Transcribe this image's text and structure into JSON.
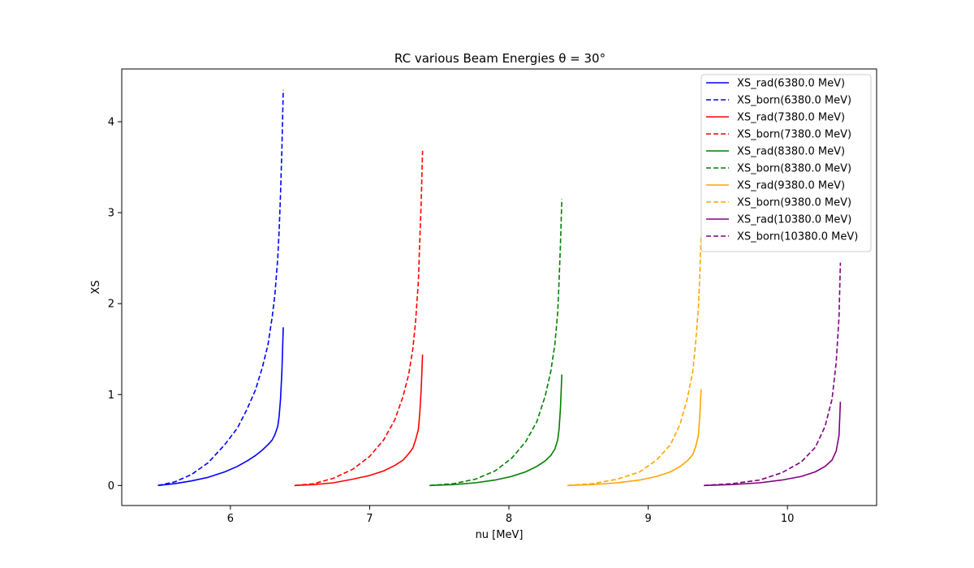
{
  "chart_data": {
    "type": "line",
    "title": "RC various Beam Energies θ = 30°",
    "xlabel": "nu [MeV]",
    "ylabel": "XS",
    "xlim": [
      5.22,
      10.64
    ],
    "ylim": [
      -0.22,
      4.58
    ],
    "xticks": [
      6,
      7,
      8,
      9,
      10
    ],
    "xtick_labels": [
      "6",
      "7",
      "8",
      "9",
      "10"
    ],
    "yticks": [
      0,
      1,
      2,
      3,
      4
    ],
    "ytick_labels": [
      "0",
      "1",
      "2",
      "3",
      "4"
    ],
    "grid": false,
    "legend_position": "top-right",
    "series": [
      {
        "name": "XS_rad(6380.0 MeV)",
        "color": "#0000ff",
        "dash": false,
        "x": [
          5.48,
          5.6,
          5.72,
          5.84,
          5.96,
          6.05,
          6.12,
          6.18,
          6.23,
          6.27,
          6.3,
          6.32,
          6.34,
          6.35,
          6.36,
          6.37,
          6.38
        ],
        "y": [
          0.0,
          0.02,
          0.05,
          0.09,
          0.15,
          0.21,
          0.27,
          0.33,
          0.39,
          0.45,
          0.5,
          0.56,
          0.65,
          0.76,
          0.95,
          1.25,
          1.74
        ]
      },
      {
        "name": "XS_born(6380.0 MeV)",
        "color": "#0000ff",
        "dash": true,
        "x": [
          5.48,
          5.6,
          5.72,
          5.84,
          5.96,
          6.05,
          6.12,
          6.18,
          6.23,
          6.27,
          6.3,
          6.32,
          6.34,
          6.35,
          6.36,
          6.37,
          6.38
        ],
        "y": [
          0.0,
          0.04,
          0.12,
          0.25,
          0.45,
          0.63,
          0.84,
          1.05,
          1.3,
          1.55,
          1.85,
          2.1,
          2.5,
          2.8,
          3.2,
          3.7,
          4.35
        ]
      },
      {
        "name": "XS_rad(7380.0 MeV)",
        "color": "#ff0000",
        "dash": false,
        "x": [
          6.46,
          6.6,
          6.74,
          6.88,
          7.0,
          7.1,
          7.18,
          7.24,
          7.28,
          7.31,
          7.33,
          7.35,
          7.36,
          7.37,
          7.38
        ],
        "y": [
          0.0,
          0.01,
          0.03,
          0.07,
          0.11,
          0.16,
          0.22,
          0.28,
          0.35,
          0.41,
          0.5,
          0.62,
          0.8,
          1.05,
          1.44
        ]
      },
      {
        "name": "XS_born(7380.0 MeV)",
        "color": "#ff0000",
        "dash": true,
        "x": [
          6.46,
          6.6,
          6.74,
          6.88,
          7.0,
          7.1,
          7.18,
          7.24,
          7.28,
          7.31,
          7.33,
          7.35,
          7.36,
          7.37,
          7.38
        ],
        "y": [
          0.0,
          0.02,
          0.08,
          0.18,
          0.32,
          0.5,
          0.72,
          0.98,
          1.22,
          1.5,
          1.8,
          2.25,
          2.7,
          3.1,
          3.68
        ]
      },
      {
        "name": "XS_rad(8380.0 MeV)",
        "color": "#008000",
        "dash": false,
        "x": [
          7.43,
          7.6,
          7.76,
          7.9,
          8.02,
          8.12,
          8.2,
          8.26,
          8.3,
          8.33,
          8.35,
          8.36,
          8.37,
          8.38
        ],
        "y": [
          0.0,
          0.01,
          0.03,
          0.06,
          0.1,
          0.15,
          0.21,
          0.27,
          0.33,
          0.4,
          0.5,
          0.62,
          0.85,
          1.22
        ]
      },
      {
        "name": "XS_born(8380.0 MeV)",
        "color": "#008000",
        "dash": true,
        "x": [
          7.43,
          7.6,
          7.76,
          7.9,
          8.02,
          8.12,
          8.2,
          8.26,
          8.3,
          8.33,
          8.35,
          8.36,
          8.37,
          8.38
        ],
        "y": [
          0.0,
          0.02,
          0.07,
          0.16,
          0.3,
          0.48,
          0.7,
          0.98,
          1.25,
          1.55,
          1.9,
          2.25,
          2.65,
          3.15
        ]
      },
      {
        "name": "XS_rad(9380.0 MeV)",
        "color": "#ffa500",
        "dash": false,
        "x": [
          8.42,
          8.6,
          8.78,
          8.94,
          9.06,
          9.16,
          9.23,
          9.28,
          9.32,
          9.34,
          9.36,
          9.37,
          9.38
        ],
        "y": [
          0.0,
          0.01,
          0.03,
          0.06,
          0.1,
          0.15,
          0.21,
          0.27,
          0.34,
          0.42,
          0.55,
          0.75,
          1.06
        ]
      },
      {
        "name": "XS_born(9380.0 MeV)",
        "color": "#ffa500",
        "dash": true,
        "x": [
          8.42,
          8.6,
          8.78,
          8.94,
          9.06,
          9.16,
          9.23,
          9.28,
          9.32,
          9.34,
          9.36,
          9.37,
          9.38
        ],
        "y": [
          0.0,
          0.02,
          0.07,
          0.15,
          0.28,
          0.45,
          0.68,
          0.95,
          1.25,
          1.55,
          1.95,
          2.3,
          2.75
        ]
      },
      {
        "name": "XS_rad(10380.0 MeV)",
        "color": "#800080",
        "dash": false,
        "x": [
          9.4,
          9.6,
          9.8,
          9.96,
          10.1,
          10.2,
          10.27,
          10.32,
          10.35,
          10.37,
          10.38
        ],
        "y": [
          0.0,
          0.01,
          0.03,
          0.06,
          0.1,
          0.15,
          0.21,
          0.28,
          0.38,
          0.55,
          0.92
        ]
      },
      {
        "name": "XS_born(10380.0 MeV)",
        "color": "#800080",
        "dash": true,
        "x": [
          9.4,
          9.6,
          9.8,
          9.96,
          10.1,
          10.2,
          10.27,
          10.32,
          10.35,
          10.37,
          10.38
        ],
        "y": [
          0.0,
          0.02,
          0.06,
          0.14,
          0.26,
          0.42,
          0.65,
          0.95,
          1.35,
          1.85,
          2.45
        ]
      }
    ]
  }
}
